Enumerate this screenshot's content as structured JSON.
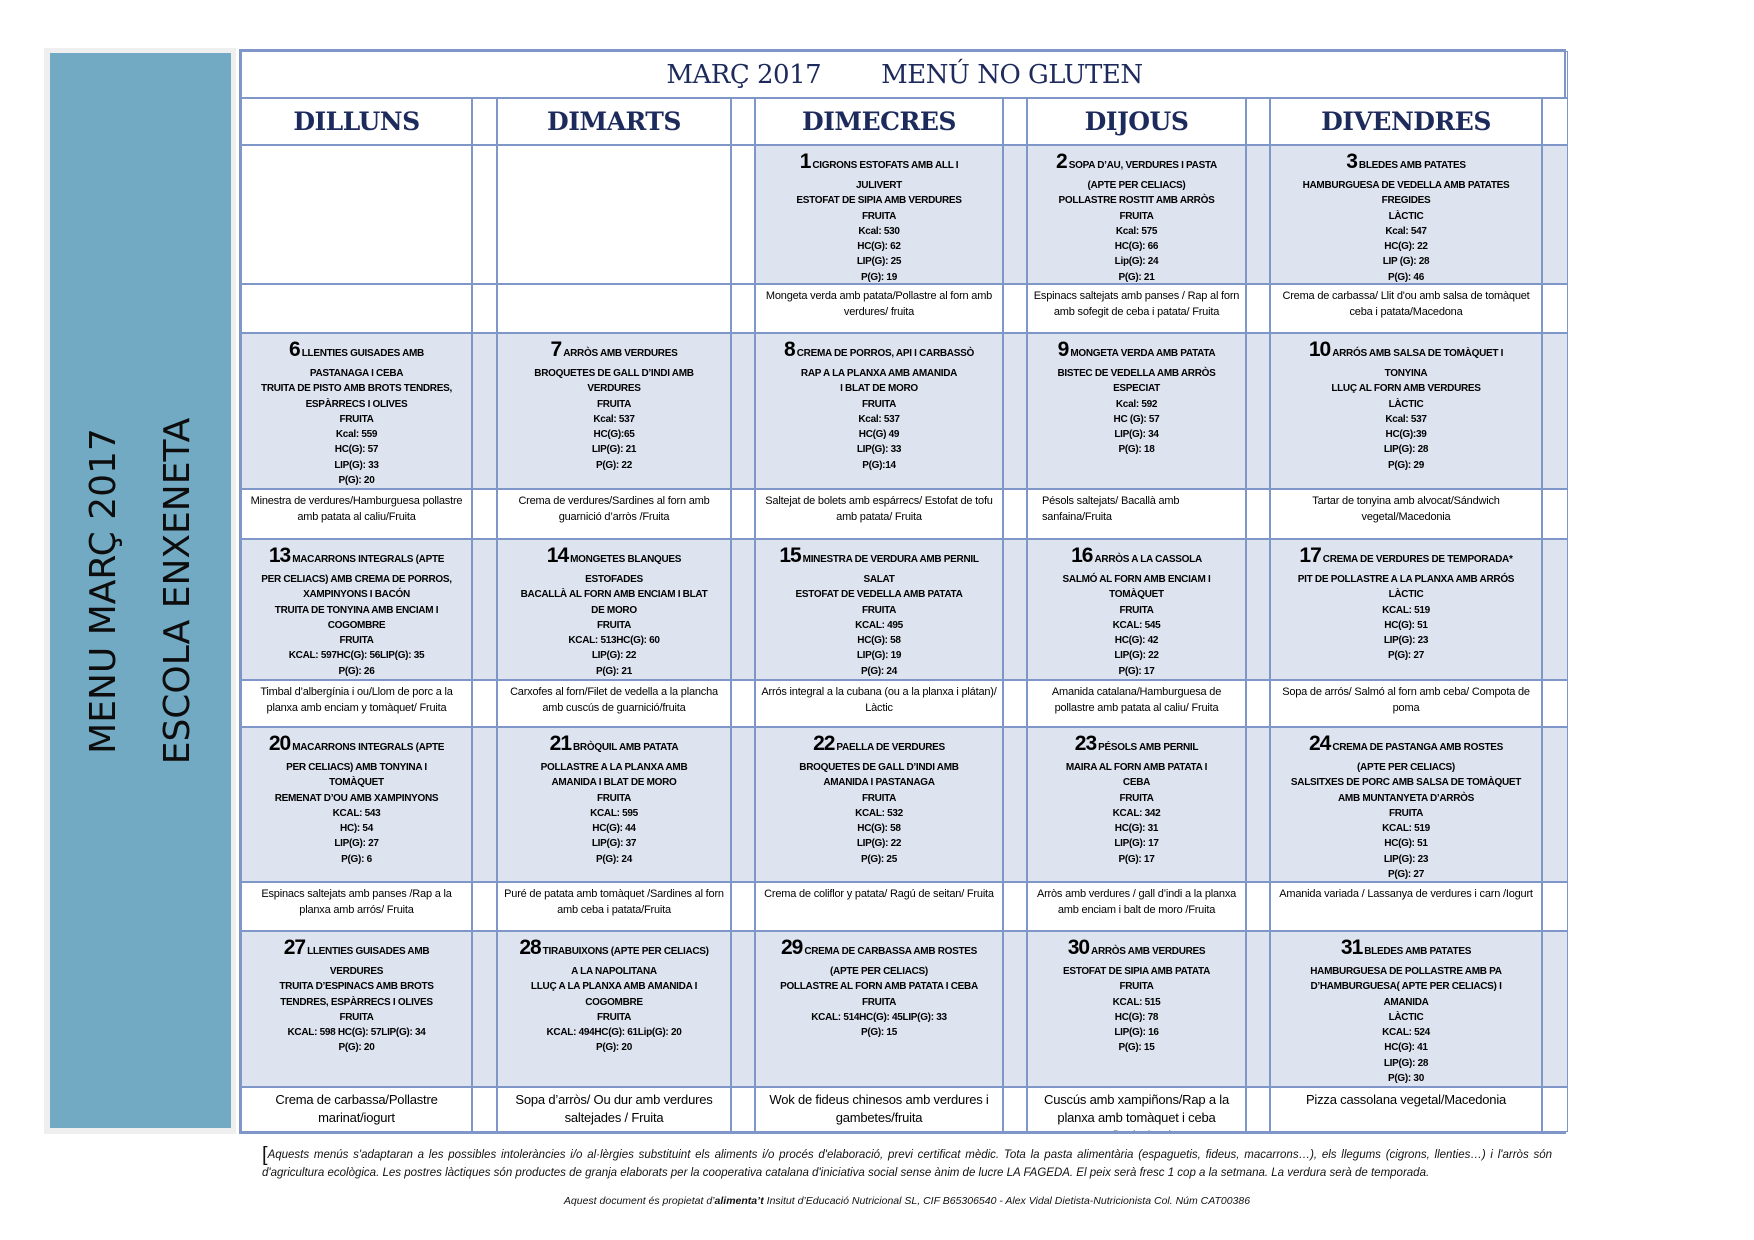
{
  "sidebar": {
    "line1": "MENU MARÇ 2017",
    "line2": "ESCOLA ENXENETA",
    "color": "#72aac4"
  },
  "header": {
    "month": "MARÇ 2017",
    "menu_type": "MENÚ NO GLUTEN"
  },
  "weekdays": [
    "DILLUNS",
    "DIMARTS",
    "DIMECRES",
    "DIJOUS",
    "DIVENDRES"
  ],
  "weeks": [
    {
      "days": [
        null,
        null,
        {
          "day": "1",
          "lines": [
            "CIGRONS ESTOFATS AMB ALL I",
            "JULIVERT",
            "ESTOFAT DE SIPIA AMB VERDURES",
            "FRUITA",
            "Kcal:  530",
            "HC(G):  62",
            "LIP(G): 25",
            "P(G):  19"
          ],
          "dinner": "Mongeta verda amb patata/Pollastre al forn amb verdures/ fruita"
        },
        {
          "day": "2",
          "lines": [
            "SOPA D’AU, VERDURES I PASTA",
            "(APTE PER CELIACS)",
            "POLLASTRE ROSTIT AMB ARRÒS",
            "FRUITA",
            "Kcal:  575",
            "HC(G):  66",
            "Lip(G): 24",
            "P(G):  21"
          ],
          "dinner": "Espinacs saltejats amb panses / Rap al forn amb sofegit de ceba i patata/ Fruita"
        },
        {
          "day": "3",
          "lines": [
            "BLEDES AMB PATATES",
            "HAMBURGUESA DE VEDELLA AMB PATATES",
            "FREGIDES",
            "LÀCTIC",
            "Kcal:  547",
            "HC(G):  22",
            "LIP (G): 28",
            "P(G): 46"
          ],
          "dinner": "Crema de carbassa/ Llit d'ou amb salsa de tomàquet ceba i patata/Macedona"
        }
      ]
    },
    {
      "days": [
        {
          "day": "6",
          "lines": [
            "LLENTIES GUISADES AMB",
            "PASTANAGA I CEBA",
            "TRUITA DE PISTO AMB BROTS TENDRES,",
            "ESPÀRRECS I OLIVES",
            "FRUITA",
            "Kcal:  559",
            "HC(G):  57",
            "LIP(G): 33",
            "P(G):  20"
          ],
          "dinner": "Minestra de verdures/Hamburguesa pollastre amb patata al caliu/Fruita"
        },
        {
          "day": "7",
          "lines": [
            "ARRÒS AMB  VERDURES",
            "BROQUETES DE GALL D’INDI AMB",
            "VERDURES",
            "FRUITA",
            "Kcal:  537",
            "HC(G):65",
            "LIP(G): 21",
            "P(G): 22"
          ],
          "dinner": "Crema de verdures/Sardines al forn amb guarnició d’arròs /Fruita"
        },
        {
          "day": "8",
          "lines": [
            "CREMA DE PORROS, API I CARBASSÒ",
            "RAP A LA PLANXA AMB AMANIDA",
            "I BLAT DE MORO",
            "FRUITA",
            "Kcal:  537",
            "HC(G)  49",
            "LIP(G): 33",
            "P(G):14"
          ],
          "dinner": "Saltejat de bolets amb espárrecs/ Estofat de tofu amb patata/ Fruita"
        },
        {
          "day": "9",
          "lines": [
            "MONGETA VERDA AMB PATATA",
            "BISTEC DE VEDELLA AMB ARRÒS",
            "ESPECIAT",
            "Kcal:  592",
            "HC (G):  57",
            "LIP(G): 34",
            "P(G):  18"
          ],
          "dinner": "Pésols saltejats/ Bacallà amb sanfaina/Fruita"
        },
        {
          "day": "10",
          "lines": [
            "ARRÓS AMB SALSA DE TOMÀQUET I",
            "TONYINA",
            "LLUÇ AL FORN AMB VERDURES",
            "LÀCTIC",
            "Kcal:  537",
            "HC(G):39",
            "LIP(G): 28",
            "P(G):  29"
          ],
          "dinner": "Tartar de tonyina amb alvocat/Sándwich vegetal/Macedonia"
        }
      ]
    },
    {
      "days": [
        {
          "day": "13",
          "lines": [
            "MACARRONS INTEGRALS (APTE",
            "PER CELIACS) AMB CREMA DE PORROS,",
            "XAMPINYONS I BACÓN",
            "TRUITA DE TONYINA AMB ENCIAM I",
            "COGOMBRE",
            "FRUITA",
            "KCAL:  597HC(G):  56LIP(G): 35",
            "P(G):  26"
          ],
          "dinner": "Timbal d’albergínia i ou/Llom de porc a la planxa amb enciam y tomàquet/ Fruita"
        },
        {
          "day": "14",
          "lines": [
            "MONGETES BLANQUES",
            "ESTOFADES",
            "BACALLÀ AL FORN AMB ENCIAM I BLAT",
            "DE MORO",
            "FRUITA",
            "KCAL:  513HC(G):  60",
            "LIP(G): 22",
            "P(G):  21"
          ],
          "dinner": "Carxofes al forn/Filet de vedella a la plancha amb cuscús de guarnició/fruita"
        },
        {
          "day": "15",
          "lines": [
            "MINESTRA DE VERDURA AMB PERNIL",
            "SALAT",
            "ESTOFAT DE VEDELLA AMB PATATA",
            "FRUITA",
            "KCAL:  495",
            "HC(G):  58",
            "LIP(G): 19",
            "P(G):  24"
          ],
          "dinner": "Arrós integral a la cubana (ou a la planxa i plátan)/ Làctic"
        },
        {
          "day": "16",
          "lines": [
            "ARRÒS A LA CASSOLA",
            "SALMÓ AL FORN AMB ENCIAM I",
            "TOMÀQUET",
            "FRUITA",
            "KCAL:  545",
            "HC(G):  42",
            "LIP(G): 22",
            "P(G):  17"
          ],
          "dinner": "Amanida catalana/Hamburguesa de pollastre amb patata al caliu/ Fruita"
        },
        {
          "day": "17",
          "lines": [
            "CREMA DE VERDURES DE TEMPORADA*",
            "PIT DE POLLASTRE  A LA PLANXA AMB ARRÓS",
            "LÀCTIC",
            "KCAL:  519",
            "HC(G):  51",
            "LIP(G): 23",
            "P(G):  27"
          ],
          "dinner": "Sopa de arrós/ Salmó al forn amb ceba/ Compota de poma"
        }
      ]
    },
    {
      "days": [
        {
          "day": "20",
          "lines": [
            "MACARRONS INTEGRALS (APTE",
            "PER CELIACS)  AMB TONYINA I",
            "TOMÀQUET",
            "REMENAT D’OU AMB XAMPINYONS",
            "KCAL:  543",
            "HC):  54",
            "LIP(G): 27",
            "P(G):  6"
          ],
          "dinner": "Espinacs saltejats amb panses /Rap a la planxa amb arrós/ Fruita"
        },
        {
          "day": "21",
          "lines": [
            "BRÒQUIL AMB PATATA",
            "POLLASTRE A LA PLANXA AMB",
            "AMANIDA I BLAT DE MORO",
            "FRUITA",
            "KCAL:  595",
            "HC(G):  44",
            "LIP(G): 37",
            "P(G):  24"
          ],
          "dinner": "Puré de patata amb tomàquet /Sardines al forn amb ceba i patata/Fruita"
        },
        {
          "day": "22",
          "lines": [
            "PAELLA  DE  VERDURES",
            "BROQUETES DE GALL D’INDI AMB",
            "AMANIDA I  PASTANAGA",
            "FRUITA",
            "KCAL:  532",
            "HC(G):  58",
            "LIP(G): 22",
            "P(G):  25"
          ],
          "dinner": "Crema de coliflor y patata/  Ragú de seitan/ Fruita"
        },
        {
          "day": "23",
          "lines": [
            "PÉSOLS AMB PERNIL",
            "MAIRA AL FORN AMB PATATA I",
            "CEBA",
            "FRUITA",
            "KCAL:  342",
            "HC(G):  31",
            "LIP(G): 17",
            "P(G):  17"
          ],
          "dinner": "Arròs amb verdures / gall d’indi a la planxa amb enciam i balt de moro /Fruita"
        },
        {
          "day": "24",
          "lines": [
            "CREMA DE PASTANGA AMB ROSTES",
            "(APTE PER CELIACS)",
            "SALSITXES DE PORC AMB SALSA DE TOMÀQUET",
            "AMB MUNTANYETA D’ARRÒS",
            "FRUITA",
            "KCAL:  519",
            "HC(G):  51",
            "LIP(G): 23",
            "P(G):  27"
          ],
          "dinner": "Amanida variada /  Lassanya de verdures i carn /Iogurt"
        }
      ]
    },
    {
      "days": [
        {
          "day": "27",
          "lines": [
            "LLENTIES GUISADES AMB",
            "VERDURES",
            "TRUITA D’ESPINACS AMB BROTS",
            "TENDRES, ESPÀRRECS I OLIVES",
            "FRUITA",
            "KCAL:  598 HC(G): 57LIP(G): 34",
            "P(G):  20"
          ],
          "dinner": "Crema de carbassa/Pollastre marinat/iogurt"
        },
        {
          "day": "28",
          "lines": [
            "TIRABUIXONS (APTE PER CELIACS)",
            "A LA NAPOLITANA",
            "LLUÇ A LA PLANXA AMB AMANIDA I",
            "COGOMBRE",
            "FRUITA",
            "KCAL: 494HC(G):  61Lip(G): 20",
            "P(G):  20"
          ],
          "dinner": "Sopa d’arròs/ Ou dur amb verdures saltejades / Fruita"
        },
        {
          "day": "29",
          "lines": [
            "CREMA DE  CARBASSA AMB ROSTES",
            "(APTE PER CELIACS)",
            "POLLASTRE AL FORN AMB PATATA I CEBA",
            "FRUITA",
            "KCAL:  514HC(G):  45LIP(G): 33",
            "P(G):  15"
          ],
          "dinner": "Wok de fideus chinesos amb verdures i gambetes/fruita"
        },
        {
          "day": "30",
          "lines": [
            "ARRÒS AMB VERDURES",
            "ESTOFAT DE SIPIA AMB PATATA",
            "FRUITA",
            "KCAL:  515",
            "HC(G):  78",
            "LIP(G): 16",
            "P(G):  15"
          ],
          "dinner": "Cuscús amb xampiñons/Rap a la planxa amb tomàquet i ceba confitada /Fruita"
        },
        {
          "day": "31",
          "lines": [
            "BLEDES AMB PATATES",
            "HAMBURGUESA DE POLLASTRE  AMB PA",
            "D’HAMBURGUESA( APTE PER CELIACS) I",
            "AMANIDA",
            "LÀCTIC",
            "KCAL:  524",
            "HC(G):  41",
            "LIP(G): 28",
            "P(G):  30"
          ],
          "dinner": "Pizza cassolana vegetal/Macedonia"
        }
      ]
    }
  ],
  "footer": {
    "note": "Aquests menús s'adaptaran a les possibles intoleràncies i/o al·lèrgies substituint els aliments i/o procés d'elaboració, previ certificat mèdic. Tota la pasta alimentària (espaguetis, fideus, macarrons…), els llegums (cigrons, llenties…) i l'arròs són d'agricultura ecològica. Les postres làctiques són productes de granja elaborats per la cooperativa catalana d'iniciativa social sense ànim de lucre LA FAGEDA. El peix serà fresc 1 cop a la setmana. La verdura serà de temporada.",
    "credit_prefix": "Aquest document és propietat d’",
    "credit_brand": "alimenta’t",
    "credit_suffix": " Insitut d’Educació Nutricional SL, CIF B65306540 - Alex Vidal Dietista-Nutricionista Col.   Núm CAT00386"
  }
}
